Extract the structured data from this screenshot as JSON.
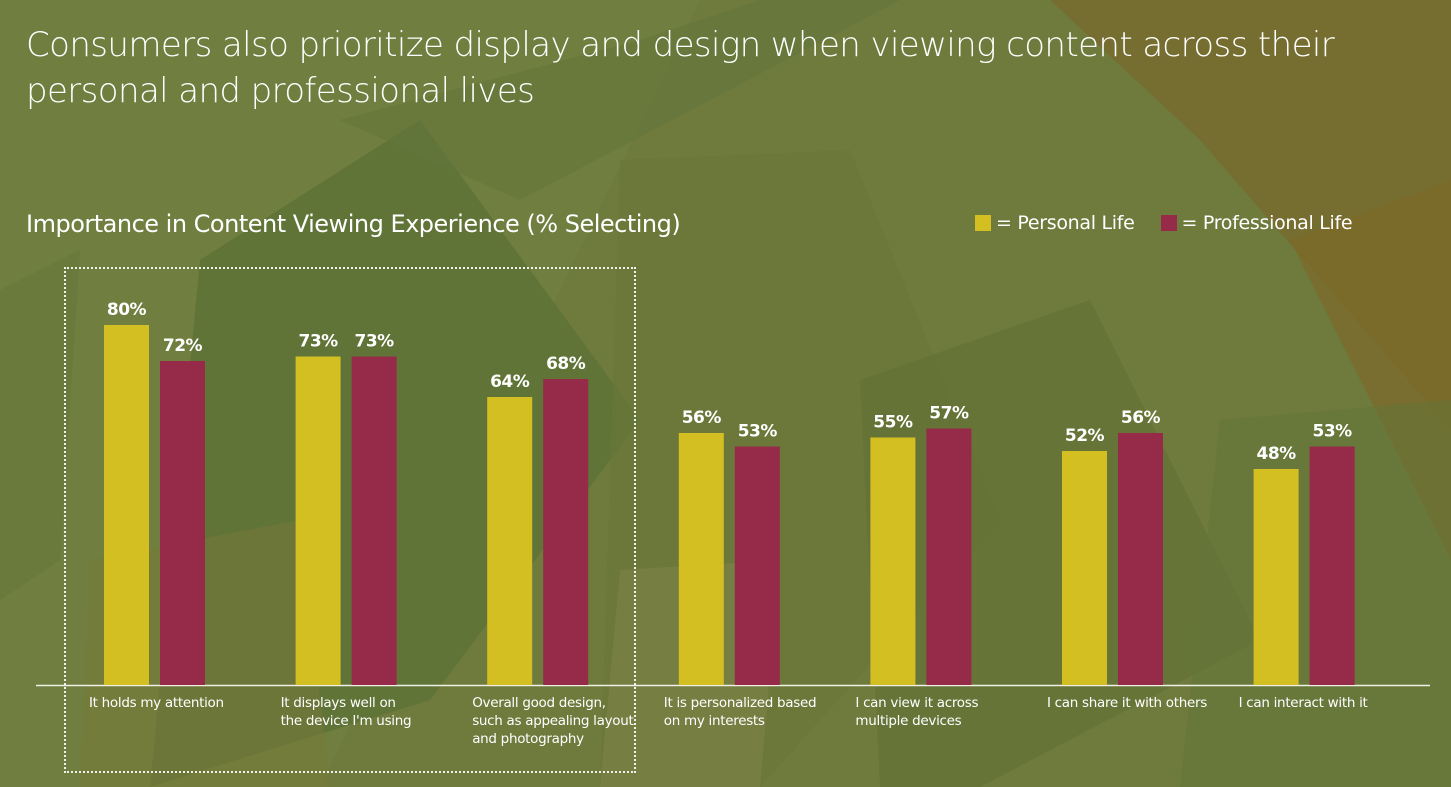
{
  "title": "Consumers also prioritize display and design when viewing content across their personal and professional lives",
  "colors": {
    "personal": "#d4bf22",
    "professional": "#962a49",
    "background": "#6b7a3c",
    "text": "#ffffff"
  },
  "chart_data": {
    "type": "bar",
    "title": "Importance in Content Viewing Experience (% Selecting)",
    "xlabel": "",
    "ylabel": "",
    "ylim": [
      0,
      100
    ],
    "grid": false,
    "legend": "top-right",
    "value_format": "percent",
    "categories": [
      "It holds my attention",
      "It displays well on the device I'm using",
      "Overall good design, such as appealing layout and photography",
      "It is personalized based on my interests",
      "I can view it across multiple devices",
      "I can share it with others",
      "I can interact with it"
    ],
    "category_lines": [
      [
        "It holds my attention"
      ],
      [
        "It displays well on",
        "the device I'm using"
      ],
      [
        "Overall good design,",
        "such as appealing layout",
        "and photography"
      ],
      [
        "It is personalized based",
        "on my interests"
      ],
      [
        "I can view it across",
        "multiple devices"
      ],
      [
        "I can share it with others"
      ],
      [
        "I can interact with it"
      ]
    ],
    "series": [
      {
        "name": "Personal Life",
        "legend_label": "= Personal Life",
        "color": "#d4bf22",
        "values": [
          80,
          73,
          64,
          56,
          55,
          52,
          48
        ]
      },
      {
        "name": "Professional Life",
        "legend_label": "= Professional Life",
        "color": "#962a49",
        "values": [
          72,
          73,
          68,
          53,
          57,
          56,
          53
        ]
      }
    ],
    "annotations": [
      {
        "type": "dotted-box",
        "covers_categories": [
          0,
          1,
          2
        ]
      }
    ]
  }
}
